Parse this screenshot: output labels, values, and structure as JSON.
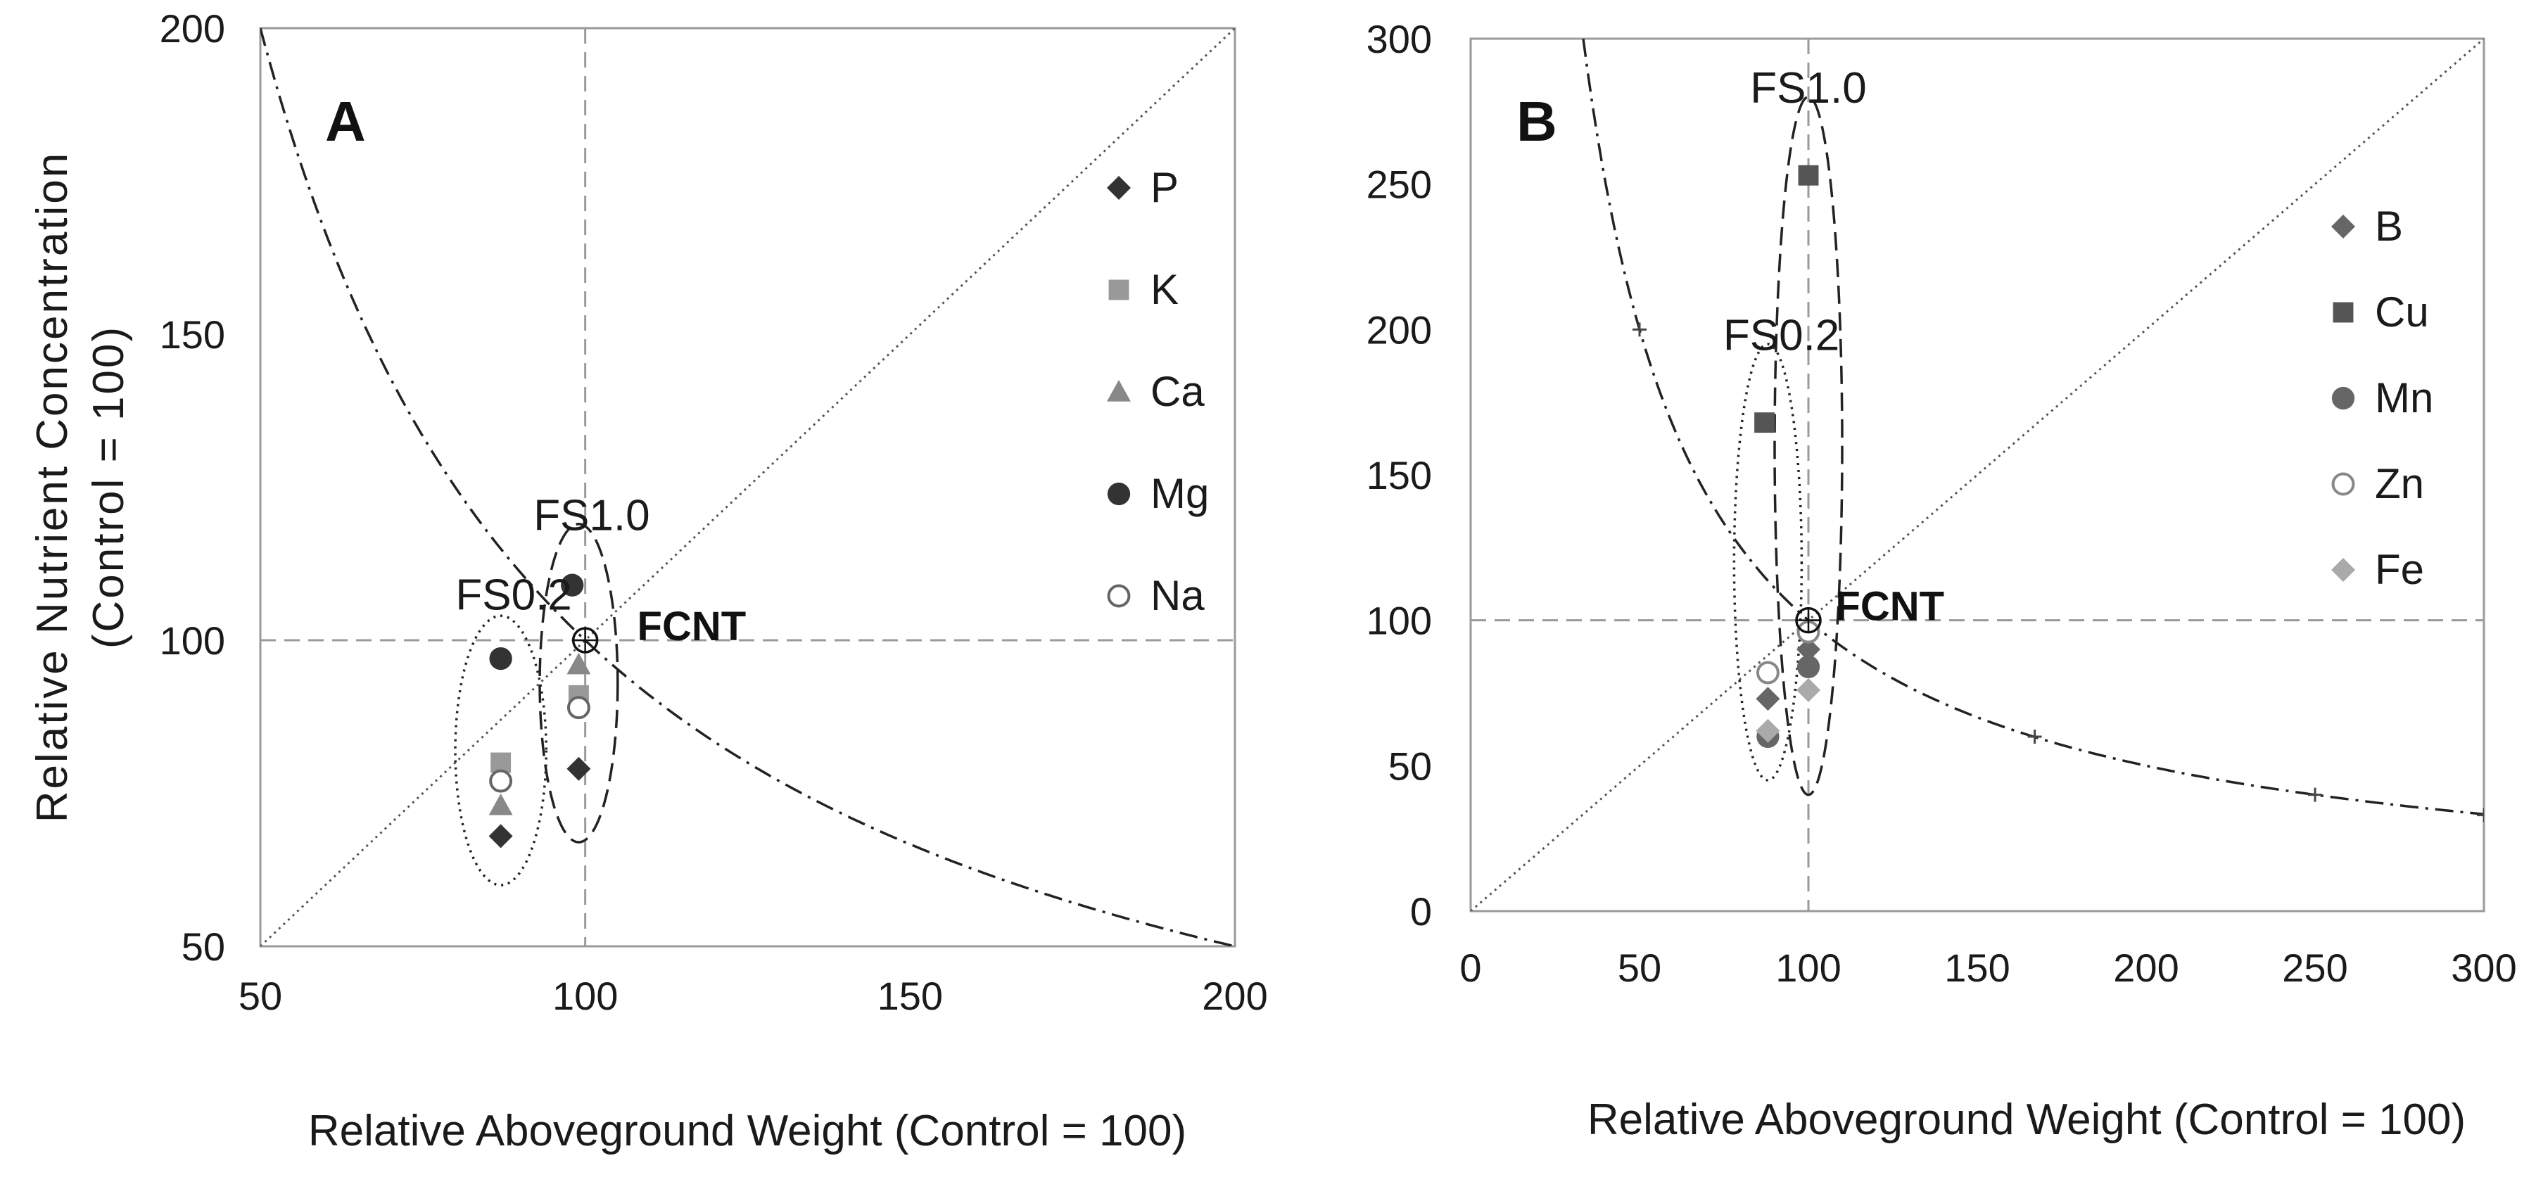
{
  "chart_data": [
    {
      "type": "scatter",
      "panel_label": "A",
      "xlabel": "Relative Aboveground Weight (Control = 100)",
      "ylabel_line1": "Relative Nutrient Concentration",
      "ylabel_line2": "(Control = 100)",
      "xlim": [
        50,
        200
      ],
      "ylim": [
        50,
        200
      ],
      "xticks": [
        "50",
        "100",
        "150",
        "200"
      ],
      "yticks": [
        "50",
        "100",
        "150",
        "200"
      ],
      "reference_lines": [
        "x = 100",
        "y = 100",
        "y = x",
        "x*y = 10000"
      ],
      "series": [
        {
          "name": "P",
          "marker": "diamond",
          "color": "#333333",
          "points": [
            [
              87,
              68
            ],
            [
              99,
              79
            ]
          ]
        },
        {
          "name": "K",
          "marker": "square",
          "color": "#999999",
          "points": [
            [
              87,
              80
            ],
            [
              99,
              91
            ]
          ]
        },
        {
          "name": "Ca",
          "marker": "triangle",
          "color": "#888888",
          "points": [
            [
              87,
              73
            ],
            [
              99,
              96
            ]
          ]
        },
        {
          "name": "Mg",
          "marker": "circle",
          "color": "#333333",
          "points": [
            [
              87,
              97
            ],
            [
              98,
              109
            ]
          ]
        },
        {
          "name": "Na",
          "marker": "open-circle",
          "color": "#666666",
          "points": [
            [
              87,
              77
            ],
            [
              99,
              89
            ]
          ]
        }
      ],
      "annotations": [
        {
          "text": "FS0.2",
          "x": 89,
          "y": 105
        },
        {
          "text": "FS1.0",
          "x": 101,
          "y": 118
        },
        {
          "text": "FCNT",
          "x": 108,
          "y": 100
        }
      ],
      "origin_point": {
        "label": "FCNT",
        "x": 100,
        "y": 100
      },
      "ellipses": [
        {
          "group": "FS0.2",
          "cx": 87,
          "cy": 82,
          "rx": 7,
          "ry": 22,
          "style": "dotted"
        },
        {
          "group": "FS1.0",
          "cx": 99,
          "cy": 93,
          "rx": 6,
          "ry": 26,
          "style": "dashed"
        }
      ]
    },
    {
      "type": "scatter",
      "panel_label": "B",
      "xlabel": "Relative Aboveground  Weight (Control = 100)",
      "xlim": [
        0,
        300
      ],
      "ylim": [
        0,
        300
      ],
      "xticks": [
        "0",
        "50",
        "100",
        "150",
        "200",
        "250",
        "300"
      ],
      "yticks": [
        "0",
        "50",
        "100",
        "150",
        "200",
        "250",
        "300"
      ],
      "reference_lines": [
        "x = 100",
        "y = 100",
        "y = x",
        "x*y = 10000"
      ],
      "curve_markers": [
        [
          50,
          200
        ],
        [
          167,
          60
        ],
        [
          250,
          40
        ],
        [
          300,
          33
        ]
      ],
      "series": [
        {
          "name": "B",
          "marker": "diamond",
          "color": "#666666",
          "points": [
            [
              88,
              73
            ],
            [
              100,
              90
            ]
          ]
        },
        {
          "name": "Cu",
          "marker": "square",
          "color": "#555555",
          "points": [
            [
              87,
              168
            ],
            [
              100,
              253
            ]
          ]
        },
        {
          "name": "Mn",
          "marker": "circle",
          "color": "#666666",
          "points": [
            [
              88,
              60
            ],
            [
              100,
              84
            ]
          ]
        },
        {
          "name": "Zn",
          "marker": "open-circle",
          "color": "#888888",
          "points": [
            [
              88,
              82
            ],
            [
              100,
              96
            ]
          ]
        },
        {
          "name": "Fe",
          "marker": "diamond",
          "color": "#aaaaaa",
          "points": [
            [
              88,
              62
            ],
            [
              100,
              76
            ]
          ]
        }
      ],
      "annotations": [
        {
          "text": "FS0.2",
          "x": 92,
          "y": 193
        },
        {
          "text": "FS1.0",
          "x": 100,
          "y": 278
        },
        {
          "text": "FCNT",
          "x": 108,
          "y": 100
        }
      ],
      "origin_point": {
        "label": "FCNT",
        "x": 100,
        "y": 100
      },
      "ellipses": [
        {
          "group": "FS0.2",
          "cx": 88,
          "cy": 120,
          "rx": 10,
          "ry": 75,
          "style": "dotted"
        },
        {
          "group": "FS1.0",
          "cx": 100,
          "cy": 160,
          "rx": 10,
          "ry": 120,
          "style": "dashed"
        }
      ]
    }
  ]
}
